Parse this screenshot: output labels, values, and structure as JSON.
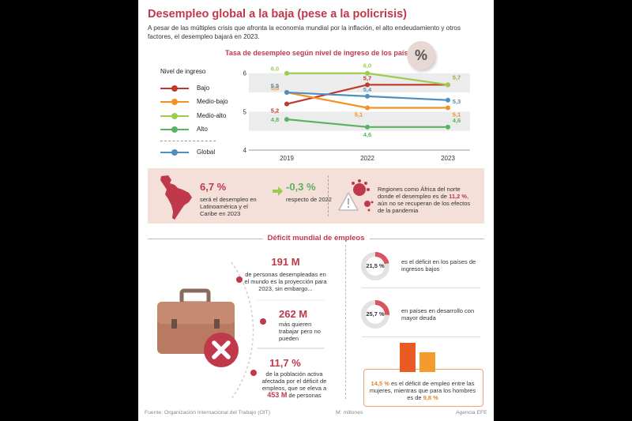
{
  "header": {
    "title": "Desempleo global a la baja (pese a la policrisis)",
    "subtitle": "A pesar de las múltiples crisis que afronta la economía mundial por la inflación, el alto endeudamiento y otros factores, el desempleo bajará en 2023."
  },
  "badge": {
    "symbol": "%",
    "icon": "percent-icon"
  },
  "legend": {
    "title": "Nivel de ingreso",
    "items": [
      "Bajo",
      "Medio-bajo",
      "Medio-alto",
      "Alto",
      "Global"
    ]
  },
  "chart_data": {
    "type": "line",
    "title": "Tasa de desempleo según nivel de ingreso de los países",
    "x": [
      "2019",
      "2022",
      "2023"
    ],
    "y_ticks": [
      "4",
      "5",
      "6"
    ],
    "ylim": [
      4,
      6.2
    ],
    "series": [
      {
        "name": "Bajo",
        "color": "#c0392b",
        "values": [
          5.2,
          5.7,
          5.7
        ],
        "labels": [
          "5,2",
          "5,7",
          "5,7"
        ]
      },
      {
        "name": "Medio-bajo",
        "color": "#f39223",
        "values": [
          5.5,
          5.1,
          5.1
        ],
        "labels": [
          "5,5",
          "5,1",
          "5,1"
        ]
      },
      {
        "name": "Medio-alto",
        "color": "#9dcb51",
        "values": [
          6.0,
          6.0,
          5.7
        ],
        "labels": [
          "6,0",
          "6,0",
          "5,7"
        ]
      },
      {
        "name": "Alto",
        "color": "#59b262",
        "values": [
          4.8,
          4.6,
          4.6
        ],
        "labels": [
          "4,8",
          "4,6",
          "4,6"
        ]
      },
      {
        "name": "Global",
        "color": "#4f8fc0",
        "values": [
          5.5,
          5.4,
          5.3
        ],
        "labels": [
          "5,5",
          "5,4",
          "5,3"
        ]
      }
    ],
    "shaded_bands": [
      [
        4.5,
        5.0
      ],
      [
        5.5,
        6.0
      ]
    ]
  },
  "latam": {
    "value": "6,7 %",
    "text": "será el desempleo en Latinoamérica y el Caribe en 2023",
    "icon": "latin-america-map-icon"
  },
  "variation": {
    "value": "-0,3 %",
    "text": "respecto de 2022",
    "icon": "arrow-right-icon"
  },
  "regions": {
    "text_before": "Regiones como África del norte donde el desempleo es de ",
    "highlight": "11,2 %",
    "text_after": ", aún no se recuperan de los efectos de la pandemia",
    "icon": "virus-warning-icon"
  },
  "deficit": {
    "title": "Déficit mundial de empleos",
    "stat1": {
      "value": "191 M",
      "text": "de personas desempleadas en el mundo es la proyección para 2023, sin embargo..."
    },
    "stat2": {
      "value": "262 M",
      "text": "más quieren trabajar pero no pueden"
    },
    "stat3": {
      "value": "11,7 %",
      "text": "de la población activa afectada por el déficit de empleos, que se eleva a",
      "value_b": "453 M",
      "text_b": " de personas"
    },
    "briefcase_icon": "briefcase-icon",
    "donut1": {
      "label": "21,5 %",
      "value": 21.5,
      "text": "es el déficit en los países de ingresos bajos"
    },
    "donut2": {
      "label": "25,7 %",
      "value": 25.7,
      "text": "en países en desarrollo con mayor deuda"
    },
    "gender": {
      "women_value": 14.5,
      "men_value": 9.8,
      "women_label": "14,5 %",
      "text_mid": " es el déficit de empleo entre las mujeres, mientras que para los hombres es de ",
      "men_label": "9,8 %"
    }
  },
  "footer": {
    "source": "Fuente: Organización Internacional del Trabajo (OIT)",
    "unit": "M: millones",
    "agency": "Agencia EFE"
  }
}
